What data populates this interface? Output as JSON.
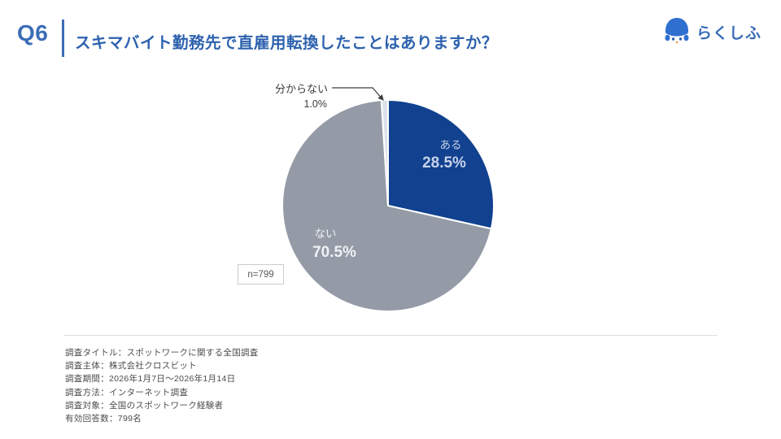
{
  "header": {
    "question_number": "Q6",
    "title": "スキマバイト勤務先で直雇用転換したことはありますか？",
    "logo_text": "らくしふ",
    "accent_color": "#3c6db6"
  },
  "chart_data": {
    "type": "pie",
    "title": "スキマバイト勤務先で直雇用転換したことはありますか？",
    "sample_label": "n=799",
    "start_angle_deg": 0,
    "direction": "clockwise",
    "legend_position": "inside",
    "slices": [
      {
        "label": "ある",
        "value": 28.5,
        "display": "28.5%",
        "color": "#11418f",
        "label_color": "#c6d2ea"
      },
      {
        "label": "ない",
        "value": 70.5,
        "display": "70.5%",
        "color": "#949ba6",
        "label_color": "#eff1f4"
      },
      {
        "label": "分からない",
        "value": 1.0,
        "display": "1.0%",
        "color": "#dce2ea",
        "label_color": "#3c3c3c"
      }
    ]
  },
  "footer": {
    "lines": [
      "調査タイトル：スポットワークに関する全国調査",
      "調査主体：株式会社クロスビット",
      "調査期間：2026年1月7日～2026年1月14日",
      "調査方法：インターネット調査",
      "調査対象：全国のスポットワーク経験者",
      "有効回答数：799名"
    ]
  }
}
